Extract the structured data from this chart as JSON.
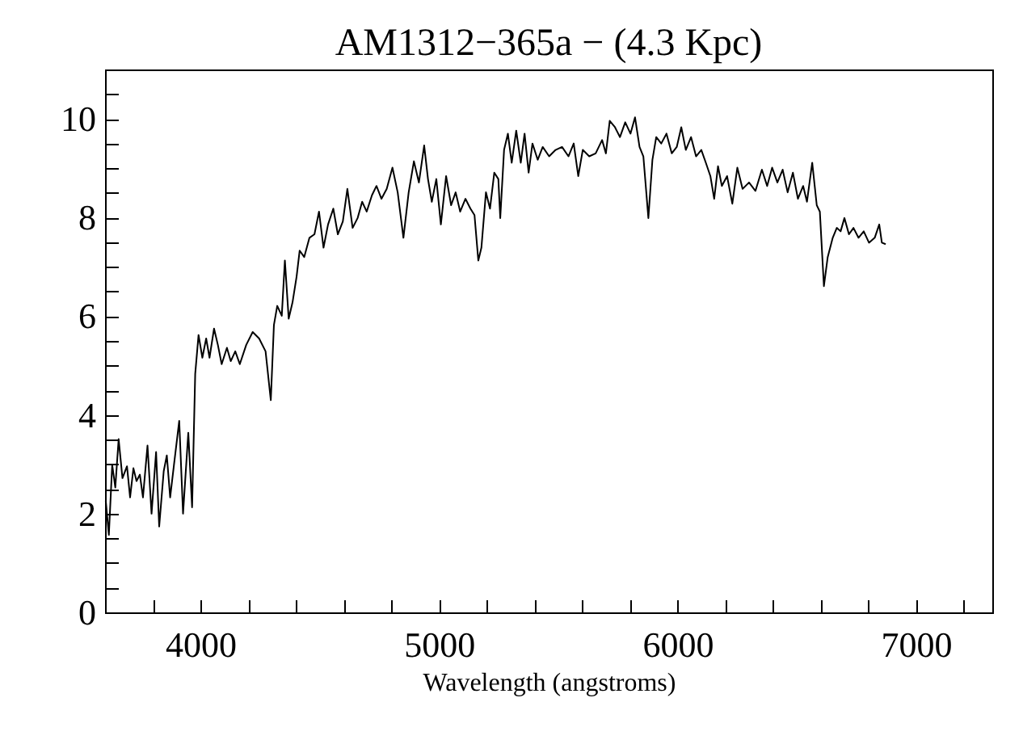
{
  "chart_data": {
    "type": "line",
    "title": "AM1312−365a − (4.3 Kpc)",
    "xlabel": "Wavelength (angstroms)",
    "xlim": [
      3600,
      7320
    ],
    "ylim": [
      0,
      11
    ],
    "xticks": [
      {
        "value": 3800,
        "label": null
      },
      4000,
      {
        "value": 4200,
        "label": null
      },
      {
        "value": 4400,
        "label": null
      },
      {
        "value": 4600,
        "label": null
      },
      {
        "value": 4800,
        "label": null
      },
      5000,
      {
        "value": 5200,
        "label": null
      },
      {
        "value": 5400,
        "label": null
      },
      {
        "value": 5600,
        "label": null
      },
      {
        "value": 5800,
        "label": null
      },
      6000,
      {
        "value": 6200,
        "label": null
      },
      {
        "value": 6400,
        "label": null
      },
      {
        "value": 6600,
        "label": null
      },
      {
        "value": 6800,
        "label": null
      },
      7000,
      {
        "value": 7200,
        "label": null
      }
    ],
    "yticks": [
      0,
      {
        "value": 0.5,
        "label": null
      },
      {
        "value": 1,
        "label": null
      },
      {
        "value": 1.5,
        "label": null
      },
      2,
      {
        "value": 2.5,
        "label": null
      },
      {
        "value": 3,
        "label": null
      },
      {
        "value": 3.5,
        "label": null
      },
      4,
      {
        "value": 4.5,
        "label": null
      },
      {
        "value": 5,
        "label": null
      },
      {
        "value": 5.5,
        "label": null
      },
      6,
      {
        "value": 6.5,
        "label": null
      },
      {
        "value": 7,
        "label": null
      },
      {
        "value": 7.5,
        "label": null
      },
      8,
      {
        "value": 8.5,
        "label": null
      },
      {
        "value": 9,
        "label": null
      },
      {
        "value": 9.5,
        "label": null
      },
      10,
      {
        "value": 10.5,
        "label": null
      }
    ],
    "grid": false,
    "marker": "none",
    "line_style": "solid",
    "series": [
      {
        "color": "#000000",
        "x": [
          3603,
          3616,
          3630,
          3643,
          3657,
          3673,
          3692,
          3705,
          3719,
          3732,
          3746,
          3759,
          3778,
          3795,
          3814,
          3827,
          3846,
          3859,
          3873,
          3889,
          3911,
          3927,
          3949,
          3965,
          3978,
          3992,
          4008,
          4024,
          4038,
          4057,
          4073,
          4089,
          4111,
          4127,
          4146,
          4165,
          4192,
          4219,
          4246,
          4273,
          4295,
          4308,
          4322,
          4341,
          4354,
          4370,
          4386,
          4403,
          4416,
          4435,
          4457,
          4478,
          4497,
          4516,
          4535,
          4557,
          4576,
          4597,
          4616,
          4638,
          4659,
          4678,
          4697,
          4719,
          4738,
          4759,
          4781,
          4805,
          4827,
          4851,
          4873,
          4895,
          4916,
          4938,
          4954,
          4970,
          4989,
          5008,
          5030,
          5051,
          5070,
          5089,
          5111,
          5132,
          5149,
          5165,
          5178,
          5197,
          5214,
          5232,
          5249,
          5257,
          5273,
          5289,
          5305,
          5324,
          5343,
          5359,
          5376,
          5392,
          5414,
          5435,
          5462,
          5489,
          5516,
          5543,
          5565,
          5584,
          5603,
          5630,
          5657,
          5684,
          5700,
          5716,
          5738,
          5759,
          5781,
          5803,
          5822,
          5841,
          5857,
          5878,
          5895,
          5911,
          5932,
          5954,
          5976,
          5997,
          6016,
          6035,
          6057,
          6078,
          6100,
          6119,
          6138,
          6154,
          6170,
          6186,
          6208,
          6230,
          6251,
          6273,
          6300,
          6327,
          6354,
          6376,
          6397,
          6419,
          6441,
          6462,
          6484,
          6505,
          6527,
          6543,
          6565,
          6584,
          6597,
          6614,
          6630,
          6651,
          6668,
          6684,
          6700,
          6719,
          6738,
          6759,
          6781,
          6803,
          6827,
          6846,
          6857,
          6873
        ],
        "values": [
          2.26,
          1.57,
          2.99,
          2.53,
          3.51,
          2.72,
          2.96,
          2.33,
          2.92,
          2.66,
          2.79,
          2.33,
          3.38,
          2.0,
          3.25,
          1.74,
          2.86,
          3.18,
          2.33,
          2.99,
          3.88,
          2.0,
          3.64,
          2.13,
          4.83,
          5.62,
          5.16,
          5.55,
          5.16,
          5.75,
          5.42,
          5.03,
          5.36,
          5.09,
          5.29,
          5.03,
          5.42,
          5.68,
          5.55,
          5.29,
          4.3,
          5.82,
          6.21,
          6.01,
          7.13,
          5.95,
          6.28,
          6.8,
          7.33,
          7.2,
          7.59,
          7.66,
          8.12,
          7.39,
          7.86,
          8.18,
          7.66,
          7.92,
          8.58,
          7.79,
          7.99,
          8.32,
          8.12,
          8.45,
          8.64,
          8.38,
          8.58,
          9.01,
          8.51,
          7.59,
          8.51,
          9.14,
          8.71,
          9.46,
          8.78,
          8.32,
          8.78,
          7.86,
          8.84,
          8.25,
          8.51,
          8.12,
          8.38,
          8.18,
          8.05,
          7.13,
          7.39,
          8.51,
          8.18,
          8.91,
          8.78,
          7.99,
          9.37,
          9.7,
          9.11,
          9.76,
          9.11,
          9.7,
          8.91,
          9.5,
          9.17,
          9.43,
          9.24,
          9.37,
          9.43,
          9.24,
          9.5,
          8.84,
          9.37,
          9.24,
          9.3,
          9.57,
          9.3,
          9.96,
          9.83,
          9.63,
          9.93,
          9.7,
          10.03,
          9.43,
          9.24,
          7.99,
          9.17,
          9.63,
          9.5,
          9.7,
          9.3,
          9.43,
          9.83,
          9.37,
          9.63,
          9.24,
          9.37,
          9.11,
          8.84,
          8.38,
          9.04,
          8.64,
          8.84,
          8.28,
          9.01,
          8.58,
          8.71,
          8.54,
          8.97,
          8.64,
          9.01,
          8.71,
          8.97,
          8.51,
          8.91,
          8.38,
          8.64,
          8.32,
          9.11,
          8.25,
          8.12,
          6.61,
          7.2,
          7.59,
          7.79,
          7.72,
          7.99,
          7.66,
          7.79,
          7.59,
          7.72,
          7.49,
          7.59,
          7.86,
          7.49,
          7.46
        ]
      }
    ]
  }
}
